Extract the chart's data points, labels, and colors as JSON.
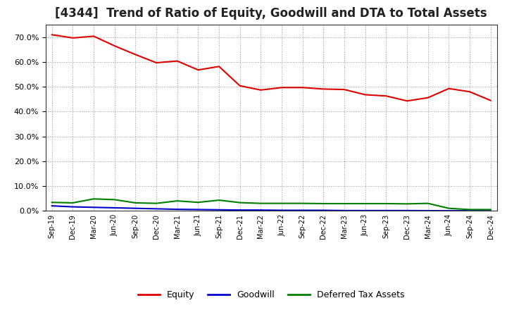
{
  "title": "[4344]  Trend of Ratio of Equity, Goodwill and DTA to Total Assets",
  "x_labels": [
    "Sep-19",
    "Dec-19",
    "Mar-20",
    "Jun-20",
    "Sep-20",
    "Dec-20",
    "Mar-21",
    "Jun-21",
    "Sep-21",
    "Dec-21",
    "Mar-22",
    "Jun-22",
    "Sep-22",
    "Dec-22",
    "Mar-23",
    "Jun-23",
    "Sep-23",
    "Dec-23",
    "Mar-24",
    "Jun-24",
    "Sep-24",
    "Dec-24"
  ],
  "equity": [
    0.71,
    0.697,
    0.704,
    0.665,
    0.63,
    0.597,
    0.604,
    0.568,
    0.582,
    0.504,
    0.487,
    0.497,
    0.497,
    0.491,
    0.489,
    0.468,
    0.463,
    0.443,
    0.456,
    0.493,
    0.48,
    0.445
  ],
  "goodwill": [
    0.02,
    0.016,
    0.014,
    0.012,
    0.01,
    0.008,
    0.006,
    0.005,
    0.004,
    0.003,
    0.003,
    0.002,
    0.002,
    0.002,
    0.001,
    0.001,
    0.001,
    0.001,
    0.0005,
    0.0003,
    0.0002,
    0.0001
  ],
  "dta": [
    0.034,
    0.032,
    0.048,
    0.045,
    0.032,
    0.03,
    0.04,
    0.034,
    0.043,
    0.033,
    0.03,
    0.03,
    0.03,
    0.029,
    0.029,
    0.029,
    0.029,
    0.028,
    0.03,
    0.01,
    0.005,
    0.005
  ],
  "equity_color": "#e00000",
  "goodwill_color": "#0000cc",
  "dta_color": "#008000",
  "background_color": "#ffffff",
  "plot_bg_color": "#ffffff",
  "grid_color": "#999999",
  "ylim": [
    0.0,
    0.75
  ],
  "yticks": [
    0.0,
    0.1,
    0.2,
    0.3,
    0.4,
    0.5,
    0.6,
    0.7
  ],
  "title_fontsize": 12,
  "legend_labels": [
    "Equity",
    "Goodwill",
    "Deferred Tax Assets"
  ]
}
